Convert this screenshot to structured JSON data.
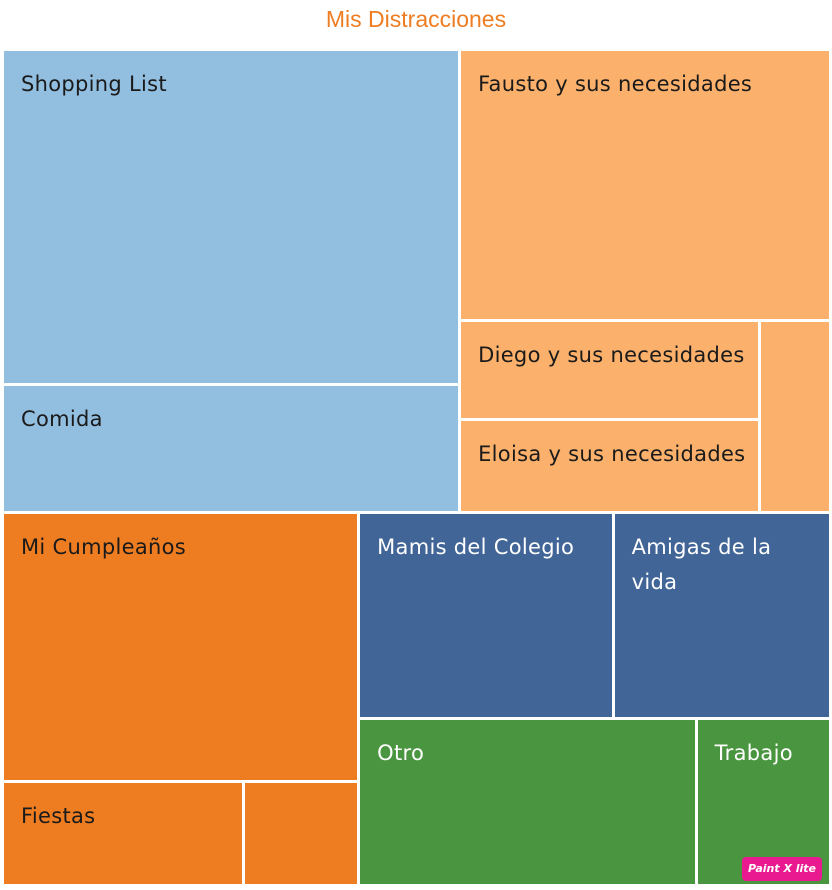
{
  "chart_data": {
    "type": "treemap",
    "title": "Mis Distracciones",
    "colors": {
      "light-blue": "#92BEE0",
      "light-orange": "#FBB16C",
      "orange": "#EE7D22",
      "dark-blue": "#416597",
      "green": "#4A953F"
    },
    "groups": [
      {
        "color": "light-blue",
        "text_color": "#1a1a1a",
        "items": [
          {
            "label": "Shopping List",
            "value": 28.0
          },
          {
            "label": "Comida",
            "value": 10.7
          }
        ]
      },
      {
        "color": "light-orange",
        "text_color": "#1a1a1a",
        "items": [
          {
            "label": "Fausto y sus necesidades",
            "value": 18.4
          },
          {
            "label": "Diego y sus necesidades",
            "value": 5.4
          },
          {
            "label": "Eloisa y sus necesidades",
            "value": 5.1
          },
          {
            "label": "",
            "value": 2.5
          }
        ]
      },
      {
        "color": "orange",
        "text_color": "#1a1a1a",
        "items": [
          {
            "label": "Mi Cumpleaños",
            "value": 17.5
          },
          {
            "label": "Fiestas",
            "value": 4.6
          },
          {
            "label": "",
            "value": 2.2
          }
        ]
      },
      {
        "color": "dark-blue",
        "text_color": "#ffffff",
        "items": [
          {
            "label": "Mamis del Colegio",
            "value": 9.6
          },
          {
            "label": "Amigas de la vida",
            "value": 8.2
          }
        ]
      },
      {
        "color": "green",
        "text_color": "#ffffff",
        "items": [
          {
            "label": "Otro",
            "value": 10.3
          },
          {
            "label": "Trabajo",
            "value": 4.1
          }
        ]
      }
    ]
  },
  "watermark": {
    "text": "Paint X lite",
    "color": "#E9198F"
  }
}
